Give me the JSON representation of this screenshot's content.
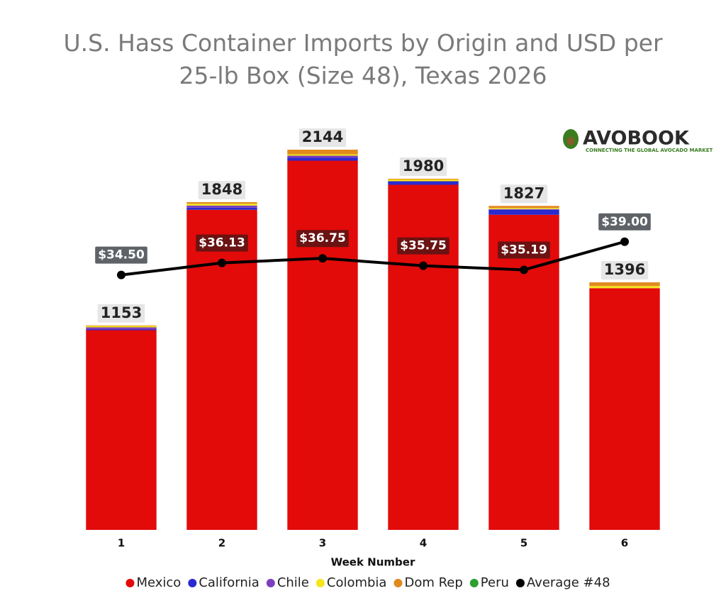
{
  "chart_data": {
    "type": "bar",
    "stacked": true,
    "title": "U.S. Hass Container Imports by Origin and USD per 25-lb Box (Size 48), Texas 2026",
    "x_label": "Week Number",
    "categories": [
      "1",
      "2",
      "3",
      "4",
      "5",
      "6"
    ],
    "series": [
      {
        "name": "Mexico",
        "color": "#e30a0a",
        "values": [
          1126,
          1805,
          2082,
          1946,
          1777,
          1363
        ]
      },
      {
        "name": "California",
        "color": "#2a2ad0",
        "values": [
          4,
          12,
          16,
          20,
          28,
          0
        ]
      },
      {
        "name": "Chile",
        "color": "#7b3fbf",
        "values": [
          12,
          12,
          12,
          0,
          4,
          0
        ]
      },
      {
        "name": "Colombia",
        "color": "#f5e51b",
        "values": [
          8,
          10,
          8,
          10,
          6,
          12
        ]
      },
      {
        "name": "Dom Rep",
        "color": "#e08a1e",
        "values": [
          3,
          9,
          26,
          4,
          12,
          21
        ]
      },
      {
        "name": "Peru",
        "color": "#2ca02c",
        "values": [
          0,
          0,
          0,
          0,
          0,
          0
        ]
      },
      {
        "name": "Average #48",
        "type": "line",
        "axis": "y2",
        "color": "#000000",
        "values": [
          34.5,
          36.13,
          36.75,
          35.75,
          35.19,
          39.0
        ],
        "value_labels": [
          "$34.50",
          "$36.13",
          "$36.75",
          "$35.75",
          "$35.19",
          "$39.00"
        ]
      }
    ],
    "totals": [
      1153,
      1848,
      2144,
      1980,
      1827,
      1396
    ],
    "ylim": [
      0,
      2500
    ],
    "y2lim": [
      0,
      60
    ],
    "legend": "bottom"
  },
  "logo": {
    "name": "AVOBOOK",
    "tagline": "CONNECTING THE GLOBAL AVOCADO MARKET"
  }
}
